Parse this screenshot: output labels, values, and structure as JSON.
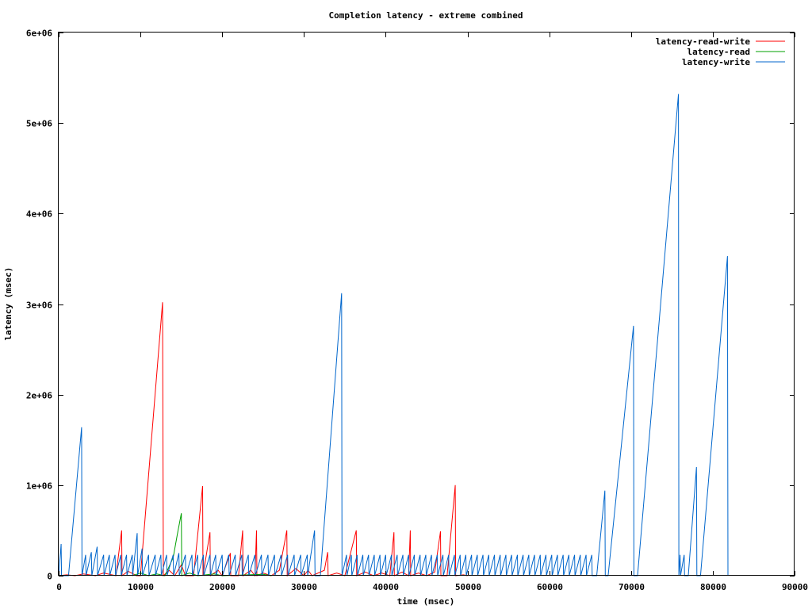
{
  "chart_data": {
    "type": "line",
    "title": "Completion latency - extreme combined",
    "xlabel": "time (msec)",
    "ylabel": "latency (msec)",
    "xlim": [
      0,
      90000
    ],
    "ylim": [
      0,
      6000000
    ],
    "x_ticks": [
      0,
      10000,
      20000,
      30000,
      40000,
      50000,
      60000,
      70000,
      80000,
      90000
    ],
    "x_tick_labels": [
      "0",
      "10000",
      "20000",
      "30000",
      "40000",
      "50000",
      "60000",
      "70000",
      "80000",
      "90000"
    ],
    "y_ticks": [
      0,
      1000000,
      2000000,
      3000000,
      4000000,
      5000000,
      6000000
    ],
    "y_tick_labels": [
      "0",
      "1e+06",
      "2e+06",
      "3e+06",
      "4e+06",
      "5e+06",
      "6e+06"
    ],
    "legend_position": "top-right",
    "grid": false,
    "series": [
      {
        "name": "latency-read-write",
        "color": "#ff0000",
        "points": [
          [
            0,
            0
          ],
          [
            1000,
            10000
          ],
          [
            2000,
            0
          ],
          [
            3000,
            20000
          ],
          [
            4500,
            0
          ],
          [
            5500,
            30000
          ],
          [
            7000,
            0
          ],
          [
            7700,
            500000
          ],
          [
            7750,
            0
          ],
          [
            8500,
            50000
          ],
          [
            9500,
            0
          ],
          [
            10000,
            0
          ],
          [
            12700,
            3020000
          ],
          [
            12750,
            1500000
          ],
          [
            12800,
            0
          ],
          [
            13500,
            60000
          ],
          [
            14200,
            0
          ],
          [
            15000,
            120000
          ],
          [
            15500,
            0
          ],
          [
            16500,
            0
          ],
          [
            17600,
            990000
          ],
          [
            17650,
            0
          ],
          [
            18500,
            480000
          ],
          [
            18550,
            0
          ],
          [
            19500,
            60000
          ],
          [
            20000,
            0
          ],
          [
            21000,
            250000
          ],
          [
            21050,
            0
          ],
          [
            22000,
            0
          ],
          [
            22500,
            500000
          ],
          [
            22550,
            0
          ],
          [
            23500,
            60000
          ],
          [
            24000,
            0
          ],
          [
            24200,
            500000
          ],
          [
            24250,
            0
          ],
          [
            25000,
            30000
          ],
          [
            26000,
            0
          ],
          [
            27000,
            60000
          ],
          [
            27900,
            500000
          ],
          [
            27950,
            0
          ],
          [
            29000,
            80000
          ],
          [
            30000,
            0
          ],
          [
            30500,
            60000
          ],
          [
            31000,
            0
          ],
          [
            32500,
            60000
          ],
          [
            32900,
            260000
          ],
          [
            32950,
            0
          ],
          [
            34000,
            30000
          ],
          [
            35000,
            0
          ],
          [
            36400,
            500000
          ],
          [
            36450,
            0
          ],
          [
            37500,
            40000
          ],
          [
            38500,
            0
          ],
          [
            39500,
            30000
          ],
          [
            40500,
            0
          ],
          [
            41000,
            480000
          ],
          [
            41050,
            0
          ],
          [
            42000,
            40000
          ],
          [
            42800,
            0
          ],
          [
            43000,
            500000
          ],
          [
            43050,
            0
          ],
          [
            44000,
            30000
          ],
          [
            45000,
            0
          ],
          [
            46000,
            40000
          ],
          [
            46700,
            490000
          ],
          [
            46750,
            0
          ],
          [
            47500,
            0
          ],
          [
            48500,
            1000000
          ],
          [
            48550,
            0
          ],
          [
            49500,
            10000
          ],
          [
            50000,
            0
          ]
        ]
      },
      {
        "name": "latency-read",
        "color": "#00a000",
        "points": [
          [
            9000,
            0
          ],
          [
            10000,
            30000
          ],
          [
            11000,
            0
          ],
          [
            12000,
            20000
          ],
          [
            13000,
            0
          ],
          [
            13500,
            100000
          ],
          [
            14000,
            200000
          ],
          [
            14500,
            450000
          ],
          [
            15000,
            690000
          ],
          [
            15050,
            0
          ],
          [
            16000,
            30000
          ],
          [
            17000,
            0
          ],
          [
            19000,
            20000
          ],
          [
            20000,
            0
          ],
          [
            25000,
            15000
          ],
          [
            26000,
            0
          ]
        ]
      },
      {
        "name": "latency-write",
        "color": "#0066cc",
        "points": [
          [
            0,
            0
          ],
          [
            300,
            350000
          ],
          [
            350,
            0
          ],
          [
            1200,
            0
          ],
          [
            2800,
            1640000
          ],
          [
            2850,
            0
          ],
          [
            3300,
            230000
          ],
          [
            3350,
            0
          ],
          [
            4000,
            260000
          ],
          [
            4050,
            0
          ],
          [
            4700,
            320000
          ],
          [
            4750,
            0
          ],
          [
            5500,
            230000
          ],
          [
            5550,
            0
          ],
          [
            6200,
            230000
          ],
          [
            6250,
            0
          ],
          [
            6900,
            230000
          ],
          [
            6950,
            0
          ],
          [
            7600,
            230000
          ],
          [
            7650,
            0
          ],
          [
            8300,
            230000
          ],
          [
            8350,
            0
          ],
          [
            9000,
            230000
          ],
          [
            9050,
            0
          ],
          [
            9600,
            470000
          ],
          [
            9650,
            0
          ],
          [
            10200,
            300000
          ],
          [
            10250,
            0
          ],
          [
            11000,
            230000
          ],
          [
            11050,
            0
          ],
          [
            11800,
            230000
          ],
          [
            11850,
            0
          ],
          [
            12500,
            230000
          ],
          [
            12550,
            0
          ],
          [
            13200,
            230000
          ],
          [
            13250,
            0
          ],
          [
            14000,
            230000
          ],
          [
            14050,
            0
          ],
          [
            14700,
            250000
          ],
          [
            14750,
            0
          ],
          [
            15500,
            230000
          ],
          [
            15550,
            0
          ],
          [
            16300,
            230000
          ],
          [
            16350,
            0
          ],
          [
            17000,
            230000
          ],
          [
            17050,
            0
          ],
          [
            17700,
            230000
          ],
          [
            17750,
            0
          ],
          [
            18500,
            230000
          ],
          [
            18550,
            0
          ],
          [
            19200,
            230000
          ],
          [
            19250,
            0
          ],
          [
            20000,
            230000
          ],
          [
            20050,
            0
          ],
          [
            20800,
            230000
          ],
          [
            20850,
            0
          ],
          [
            21600,
            230000
          ],
          [
            21650,
            0
          ],
          [
            22400,
            230000
          ],
          [
            22450,
            0
          ],
          [
            23200,
            230000
          ],
          [
            23250,
            0
          ],
          [
            24000,
            230000
          ],
          [
            24050,
            0
          ],
          [
            24800,
            230000
          ],
          [
            24850,
            0
          ],
          [
            25600,
            230000
          ],
          [
            25650,
            0
          ],
          [
            26400,
            230000
          ],
          [
            26450,
            0
          ],
          [
            27200,
            230000
          ],
          [
            27250,
            0
          ],
          [
            28000,
            230000
          ],
          [
            28050,
            0
          ],
          [
            28800,
            230000
          ],
          [
            28850,
            0
          ],
          [
            29600,
            230000
          ],
          [
            29650,
            0
          ],
          [
            30400,
            230000
          ],
          [
            30450,
            0
          ],
          [
            31300,
            500000
          ],
          [
            31350,
            0
          ],
          [
            32000,
            0
          ],
          [
            34600,
            3120000
          ],
          [
            34650,
            0
          ],
          [
            35200,
            230000
          ],
          [
            35250,
            0
          ],
          [
            35800,
            230000
          ],
          [
            35850,
            0
          ],
          [
            36500,
            230000
          ],
          [
            36550,
            0
          ],
          [
            37200,
            230000
          ],
          [
            37250,
            0
          ],
          [
            37900,
            230000
          ],
          [
            37950,
            0
          ],
          [
            38600,
            230000
          ],
          [
            38650,
            0
          ],
          [
            39300,
            230000
          ],
          [
            39350,
            0
          ],
          [
            40000,
            230000
          ],
          [
            40050,
            0
          ],
          [
            40700,
            230000
          ],
          [
            40750,
            0
          ],
          [
            41400,
            230000
          ],
          [
            41450,
            0
          ],
          [
            42100,
            230000
          ],
          [
            42150,
            0
          ],
          [
            42800,
            230000
          ],
          [
            42850,
            0
          ],
          [
            43500,
            230000
          ],
          [
            43550,
            0
          ],
          [
            44200,
            230000
          ],
          [
            44250,
            0
          ],
          [
            44900,
            230000
          ],
          [
            44950,
            0
          ],
          [
            45600,
            230000
          ],
          [
            45650,
            0
          ],
          [
            46300,
            230000
          ],
          [
            46350,
            0
          ],
          [
            47000,
            230000
          ],
          [
            47050,
            0
          ],
          [
            47700,
            230000
          ],
          [
            47750,
            0
          ],
          [
            48400,
            230000
          ],
          [
            48450,
            0
          ],
          [
            49100,
            230000
          ],
          [
            49150,
            0
          ],
          [
            49800,
            230000
          ],
          [
            49850,
            0
          ],
          [
            50500,
            230000
          ],
          [
            50550,
            0
          ],
          [
            51200,
            230000
          ],
          [
            51250,
            0
          ],
          [
            51900,
            230000
          ],
          [
            51950,
            0
          ],
          [
            52600,
            230000
          ],
          [
            52650,
            0
          ],
          [
            53300,
            230000
          ],
          [
            53350,
            0
          ],
          [
            54000,
            230000
          ],
          [
            54050,
            0
          ],
          [
            54700,
            230000
          ],
          [
            54750,
            0
          ],
          [
            55400,
            230000
          ],
          [
            55450,
            0
          ],
          [
            56100,
            230000
          ],
          [
            56150,
            0
          ],
          [
            56800,
            230000
          ],
          [
            56850,
            0
          ],
          [
            57500,
            230000
          ],
          [
            57550,
            0
          ],
          [
            58200,
            230000
          ],
          [
            58250,
            0
          ],
          [
            58900,
            230000
          ],
          [
            58950,
            0
          ],
          [
            59600,
            230000
          ],
          [
            59650,
            0
          ],
          [
            60300,
            230000
          ],
          [
            60350,
            0
          ],
          [
            61000,
            230000
          ],
          [
            61050,
            0
          ],
          [
            61700,
            230000
          ],
          [
            61750,
            0
          ],
          [
            62400,
            230000
          ],
          [
            62450,
            0
          ],
          [
            63100,
            230000
          ],
          [
            63150,
            0
          ],
          [
            63800,
            230000
          ],
          [
            63850,
            0
          ],
          [
            64500,
            230000
          ],
          [
            64550,
            0
          ],
          [
            65200,
            230000
          ],
          [
            65250,
            0
          ],
          [
            65800,
            0
          ],
          [
            66800,
            940000
          ],
          [
            66850,
            0
          ],
          [
            67200,
            0
          ],
          [
            70300,
            2760000
          ],
          [
            70350,
            0
          ],
          [
            70800,
            0
          ],
          [
            75800,
            5320000
          ],
          [
            75850,
            0
          ],
          [
            76000,
            230000
          ],
          [
            76050,
            0
          ],
          [
            76500,
            230000
          ],
          [
            76550,
            0
          ],
          [
            77000,
            0
          ],
          [
            78000,
            1200000
          ],
          [
            78050,
            0
          ],
          [
            78500,
            0
          ],
          [
            81800,
            3530000
          ],
          [
            81850,
            0
          ]
        ]
      }
    ]
  }
}
